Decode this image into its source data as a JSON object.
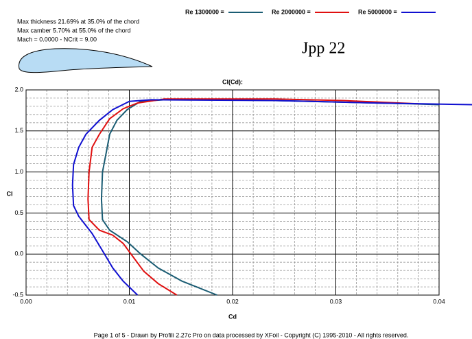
{
  "chart_data": {
    "type": "line",
    "title": "Jpp 22",
    "plot_title": "Cl(Cd):",
    "xlabel": "Cd",
    "ylabel": "Cl",
    "airfoil_info": [
      "Max thickness 21.69% at 35.0% of the chord",
      "Max camber 5.70% at 55.0% of the chord",
      "Mach = 0.0000 - NCrit = 9.00"
    ],
    "footer": "Page 1 of 5   -   Drawn by Profili 2.27c Pro on data processed by  XFoil - Copyright (C) 1995-2010 - All rights reserved.",
    "xlim": [
      0,
      0.04
    ],
    "ylim": [
      -0.5,
      2.0
    ],
    "xticks": [
      {
        "value": 0,
        "label": "0.00"
      },
      0.01,
      0.02,
      0.03,
      0.04
    ],
    "yticks": [
      -0.5,
      {
        "value": 0,
        "label": "0.0"
      },
      0.5,
      {
        "value": 1,
        "label": "1.0"
      },
      1.5,
      {
        "value": 2,
        "label": "2.0"
      }
    ],
    "grid": true,
    "series": [
      {
        "name": "Re 1300000 =",
        "color": "#1a5c73",
        "x": [
          0.0185,
          0.0151,
          0.0128,
          0.0111,
          0.0098,
          0.0081,
          0.0074,
          0.0073,
          0.0074,
          0.0078,
          0.0081,
          0.0088,
          0.0098,
          0.0111,
          0.0134,
          0.0174,
          0.0241,
          0.0307,
          0.0373,
          0.04
        ],
        "values": [
          -0.5,
          -0.33,
          -0.17,
          0.0,
          0.15,
          0.29,
          0.42,
          0.67,
          1.0,
          1.26,
          1.46,
          1.63,
          1.76,
          1.86,
          1.88,
          1.88,
          1.87,
          1.85,
          1.83,
          1.82
        ]
      },
      {
        "name": "Re 2000000 =",
        "color": "#e01010",
        "x": [
          0.0146,
          0.0128,
          0.0114,
          0.0104,
          0.0094,
          0.0084,
          0.0071,
          0.0061,
          0.006,
          0.0061,
          0.0064,
          0.0071,
          0.0081,
          0.0094,
          0.0108,
          0.0134,
          0.0241,
          0.0307,
          0.038
        ],
        "values": [
          -0.5,
          -0.36,
          -0.21,
          -0.04,
          0.13,
          0.23,
          0.29,
          0.42,
          0.67,
          1.0,
          1.3,
          1.46,
          1.65,
          1.77,
          1.84,
          1.89,
          1.89,
          1.87,
          1.83
        ]
      },
      {
        "name": "Re 5000000 =",
        "color": "#1010d0",
        "x": [
          0.0108,
          0.0094,
          0.0084,
          0.0074,
          0.0064,
          0.0051,
          0.0046,
          0.0045,
          0.0046,
          0.0051,
          0.0058,
          0.0071,
          0.0084,
          0.01,
          0.0121,
          0.0241,
          0.034,
          0.0432
        ],
        "values": [
          -0.5,
          -0.33,
          -0.17,
          0.04,
          0.25,
          0.46,
          0.59,
          0.84,
          1.09,
          1.3,
          1.46,
          1.63,
          1.76,
          1.86,
          1.88,
          1.87,
          1.84,
          1.82
        ]
      }
    ]
  }
}
